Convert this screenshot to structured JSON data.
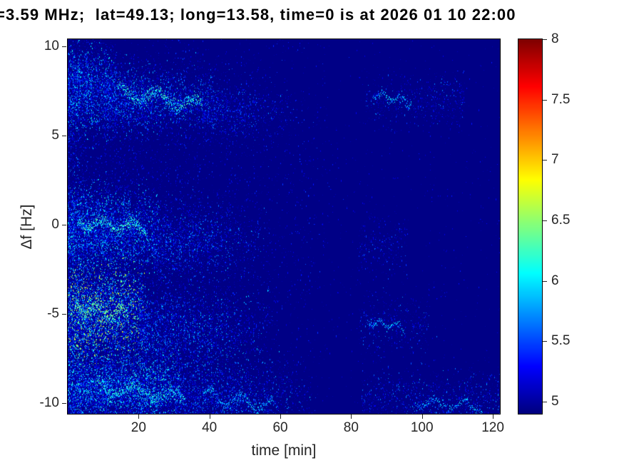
{
  "chart_data": {
    "type": "heatmap",
    "title": "=3.59 MHz;  lat=49.13; long=13.58, time=0 is at 2026 01 10 22:00",
    "xlabel": "time [min]",
    "ylabel": "Δf [Hz]",
    "xlim": [
      0,
      122
    ],
    "ylim": [
      -10.6,
      10.4
    ],
    "xticks": [
      20,
      40,
      60,
      80,
      100,
      120
    ],
    "yticks": [
      -10,
      -5,
      0,
      5,
      10
    ],
    "grid": false,
    "colormap": "jet",
    "background_value": 4.92,
    "colorbar": {
      "min": 4.9,
      "max": 8,
      "ticks": [
        5,
        5.5,
        6,
        6.5,
        7,
        7.5,
        8
      ],
      "position": "right"
    },
    "bands": [
      {
        "name": "left-edge-column",
        "f_center": 0,
        "f_sigma": 8.0,
        "t0": 0,
        "t1": 6,
        "dots_per_min": 260,
        "fade_power": 0.6,
        "v_spread": 0.85,
        "v_pow": 2.4
      },
      {
        "name": "upper-left-dense",
        "f_center": 7.6,
        "f_sigma": 1.1,
        "t0": 0,
        "t1": 14,
        "dots_per_min": 260,
        "fade_power": 0.4,
        "v_spread": 1.15,
        "v_pow": 2.6
      },
      {
        "name": "upper-mid",
        "f_center": 7.0,
        "f_sigma": 0.9,
        "t0": 10,
        "t1": 42,
        "dots_per_min": 150,
        "fade_power": 0.7,
        "v_spread": 1.0,
        "v_pow": 2.8
      },
      {
        "name": "upper-fading",
        "f_center": 6.4,
        "f_sigma": 0.8,
        "t0": 38,
        "t1": 68,
        "dots_per_min": 70,
        "fade_power": 1.4,
        "v_spread": 0.8,
        "v_pow": 3.0
      },
      {
        "name": "zero-left",
        "f_center": -0.3,
        "f_sigma": 1.1,
        "t0": 0,
        "t1": 26,
        "dots_per_min": 260,
        "fade_power": 0.4,
        "v_spread": 1.2,
        "v_pow": 2.6
      },
      {
        "name": "zero-mid",
        "f_center": -1.0,
        "f_sigma": 1.0,
        "t0": 24,
        "t1": 58,
        "dots_per_min": 110,
        "fade_power": 1.2,
        "v_spread": 0.9,
        "v_pow": 3.0
      },
      {
        "name": "minus5-hot",
        "f_center": -5.0,
        "f_sigma": 1.2,
        "t0": 0,
        "t1": 22,
        "dots_per_min": 420,
        "fade_power": 0.35,
        "v_spread": 1.9,
        "v_pow": 3.2
      },
      {
        "name": "minus5-mid",
        "f_center": -6.0,
        "f_sigma": 1.1,
        "t0": 20,
        "t1": 60,
        "dots_per_min": 140,
        "fade_power": 1.1,
        "v_spread": 1.0,
        "v_pow": 3.0
      },
      {
        "name": "bottom-left",
        "f_center": -9.2,
        "f_sigma": 1.0,
        "t0": 0,
        "t1": 32,
        "dots_per_min": 300,
        "fade_power": 0.3,
        "v_spread": 1.3,
        "v_pow": 2.8
      },
      {
        "name": "bottom-mid",
        "f_center": -9.6,
        "f_sigma": 0.9,
        "t0": 30,
        "t1": 70,
        "dots_per_min": 120,
        "fade_power": 1.0,
        "v_spread": 0.9,
        "v_pow": 3.0
      },
      {
        "name": "sparse-left-wide",
        "f_center": 0,
        "f_sigma": 7.5,
        "t0": 0,
        "t1": 78,
        "dots_per_min": 90,
        "fade_power": 0.8,
        "v_spread": 0.55,
        "v_pow": 2.2
      },
      {
        "name": "right-upper",
        "f_center": 7.0,
        "f_sigma": 0.7,
        "t0": 84,
        "t1": 112,
        "dots_per_min": 18,
        "fade_power": 0,
        "v_spread": 0.8,
        "v_pow": 3.5
      },
      {
        "name": "right-zero",
        "f_center": -1.1,
        "f_sigma": 0.8,
        "t0": 82,
        "t1": 96,
        "dots_per_min": 14,
        "fade_power": 0,
        "v_spread": 0.7,
        "v_pow": 3.5
      },
      {
        "name": "right-minus5",
        "f_center": -5.6,
        "f_sigma": 0.9,
        "t0": 82,
        "t1": 102,
        "dots_per_min": 18,
        "fade_power": 0,
        "v_spread": 0.75,
        "v_pow": 3.5
      },
      {
        "name": "right-bottom",
        "f_center": -9.9,
        "f_sigma": 0.8,
        "t0": 83,
        "t1": 122,
        "dots_per_min": 26,
        "fade_power": 0,
        "v_spread": 0.85,
        "v_pow": 3.2
      },
      {
        "name": "ultra-sparse-global",
        "f_center": 0,
        "f_sigma": 8.0,
        "t0": 0,
        "t1": 122,
        "dots_per_min": 10,
        "fade_power": 0,
        "v_spread": 0.4,
        "v_pow": 2.0
      }
    ],
    "streaks": [
      {
        "t0": 14,
        "t1": 38,
        "f0": 7.5,
        "f1": 6.7,
        "amp": 0.3,
        "value": 6.2,
        "jitter": 0.18,
        "pts_per_min": 16
      },
      {
        "t0": 3,
        "t1": 22,
        "f0": 0.2,
        "f1": -0.2,
        "amp": 0.25,
        "value": 6.25,
        "jitter": 0.15,
        "pts_per_min": 16
      },
      {
        "t0": 2,
        "t1": 17,
        "f0": -4.6,
        "f1": -5.0,
        "amp": 0.3,
        "value": 6.45,
        "jitter": 0.2,
        "pts_per_min": 18
      },
      {
        "t0": 8,
        "t1": 33,
        "f0": -9.0,
        "f1": -9.7,
        "amp": 0.3,
        "value": 6.15,
        "jitter": 0.18,
        "pts_per_min": 15
      },
      {
        "t0": 38,
        "t1": 58,
        "f0": -9.6,
        "f1": -10.1,
        "amp": 0.35,
        "value": 5.95,
        "jitter": 0.15,
        "pts_per_min": 10
      },
      {
        "t0": 86,
        "t1": 97,
        "f0": 7.3,
        "f1": 6.9,
        "amp": 0.2,
        "value": 5.95,
        "jitter": 0.12,
        "pts_per_min": 8
      },
      {
        "t0": 85,
        "t1": 95,
        "f0": -5.4,
        "f1": -5.8,
        "amp": 0.2,
        "value": 5.9,
        "jitter": 0.12,
        "pts_per_min": 8
      },
      {
        "t0": 98,
        "t1": 117,
        "f0": -9.9,
        "f1": -10.2,
        "amp": 0.25,
        "value": 5.9,
        "jitter": 0.12,
        "pts_per_min": 7
      }
    ]
  }
}
